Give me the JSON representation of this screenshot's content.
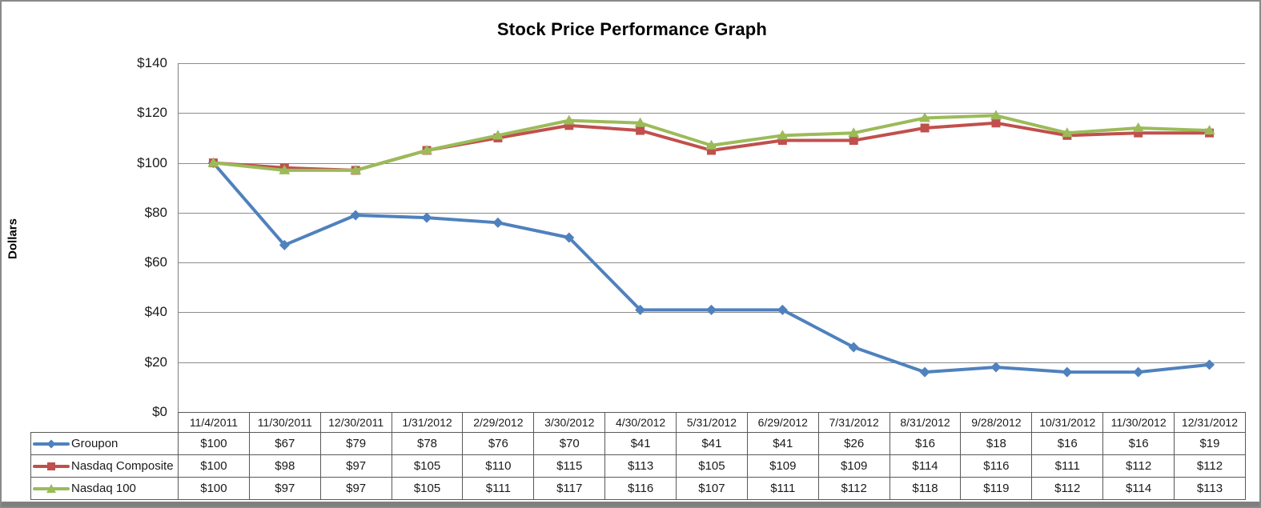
{
  "frame": {
    "background": "#ffffff",
    "border_color": "#8a8a8a"
  },
  "chart_data": {
    "type": "line",
    "title": "Stock Price Performance Graph",
    "xlabel": "",
    "ylabel": "Dollars",
    "ylim": [
      0,
      140
    ],
    "ytick_step": 20,
    "ytick_labels": [
      "$0",
      "$20",
      "$40",
      "$60",
      "$80",
      "$100",
      "$120",
      "$140"
    ],
    "value_prefix": "$",
    "grid": true,
    "gridline_color": "#8c8c8c",
    "axis_line_color": "#7f7f7f",
    "table_border_color": "#595959",
    "legend_position": "table-left",
    "categories": [
      "11/4/2011",
      "11/30/2011",
      "12/30/2011",
      "1/31/2012",
      "2/29/2012",
      "3/30/2012",
      "4/30/2012",
      "5/31/2012",
      "6/29/2012",
      "7/31/2012",
      "8/31/2012",
      "9/28/2012",
      "10/31/2012",
      "11/30/2012",
      "12/31/2012"
    ],
    "series": [
      {
        "name": "Groupon",
        "color": "#4f81bd",
        "marker": "diamond",
        "values": [
          100,
          67,
          79,
          78,
          76,
          70,
          41,
          41,
          41,
          26,
          16,
          18,
          16,
          16,
          19
        ]
      },
      {
        "name": "Nasdaq Composite",
        "color": "#c0504d",
        "marker": "square",
        "values": [
          100,
          98,
          97,
          105,
          110,
          115,
          113,
          105,
          109,
          109,
          114,
          116,
          111,
          112,
          112
        ]
      },
      {
        "name": "Nasdaq 100",
        "color": "#9bbb59",
        "marker": "triangle",
        "values": [
          100,
          97,
          97,
          105,
          111,
          117,
          116,
          107,
          111,
          112,
          118,
          119,
          112,
          114,
          113
        ]
      }
    ]
  }
}
